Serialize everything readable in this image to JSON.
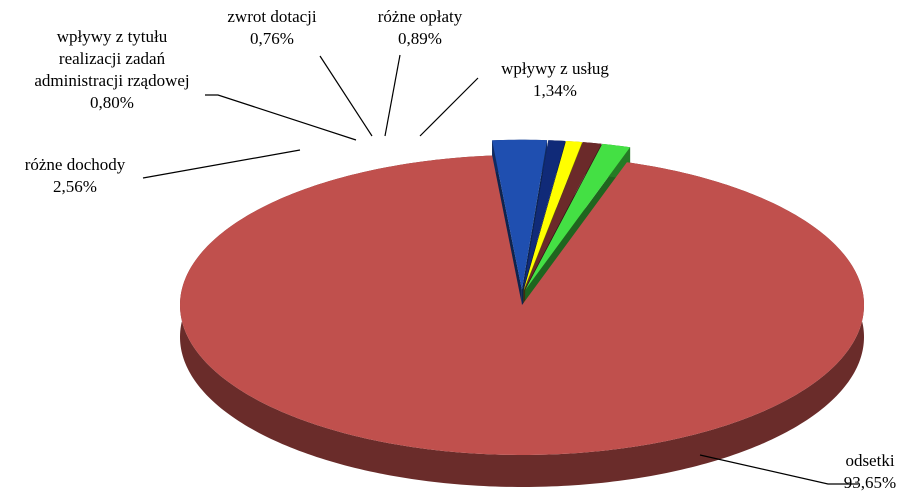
{
  "chart_data": {
    "type": "pie3d",
    "categories": [
      "odsetki",
      "różne dochody",
      "wpływy z tytułu\nrealizacji zadań\nadministracji rządowej",
      "zwrot dotacji",
      "różne opłaty",
      "wpływy z usług"
    ],
    "values": [
      93.65,
      2.56,
      0.8,
      0.76,
      0.89,
      1.34
    ],
    "value_labels": [
      "93,65%",
      "2,56%",
      "0,80%",
      "0,76%",
      "0,89%",
      "1,34%"
    ],
    "colors": [
      "#c0504d",
      "#1f4fb0",
      "#102a78",
      "#ffff00",
      "#6b2a2a",
      "#44e044"
    ]
  }
}
